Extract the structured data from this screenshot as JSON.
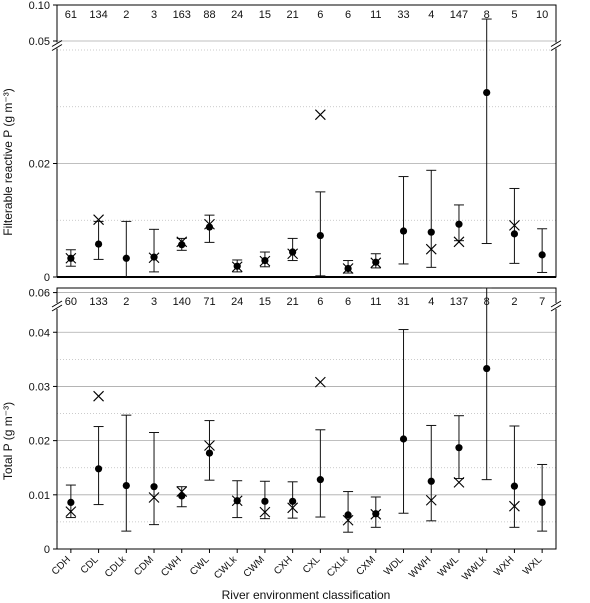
{
  "chart_data": {
    "xlabel": "River environment classification",
    "categories": [
      "CDH",
      "CDL",
      "CDLk",
      "CDM",
      "CWH",
      "CWL",
      "CWLk",
      "CWM",
      "CXH",
      "CXL",
      "CXLk",
      "CXM",
      "WDL",
      "WWH",
      "WWL",
      "WWLk",
      "WXH",
      "WXL"
    ],
    "panels": [
      {
        "type": "scatter",
        "ylabel": "Filterable reactive P (g m⁻³)",
        "ylim_lower": [
          0,
          0.04
        ],
        "ylim_upper": [
          0.05,
          0.1
        ],
        "yticks_lower": [
          "0",
          "0.02"
        ],
        "yticks_upper": [
          "0.05",
          "0.10"
        ],
        "grid": true,
        "counts": [
          "61",
          "134",
          "2",
          "3",
          "163",
          "88",
          "24",
          "15",
          "21",
          "6",
          "6",
          "11",
          "33",
          "4",
          "147",
          "8",
          "5",
          "10"
        ],
        "series": [
          {
            "marker": "dot",
            "values": [
              0.0033,
              0.0058,
              0.0033,
              0.0035,
              0.0057,
              0.0088,
              0.0019,
              0.0029,
              0.0044,
              0.0073,
              0.0015,
              0.0026,
              0.0081,
              0.0079,
              0.0093,
              0.0325,
              0.0076,
              0.0039
            ]
          },
          {
            "marker": "cross",
            "values": [
              0.0033,
              0.0101,
              null,
              0.0034,
              0.0062,
              0.0093,
              0.0018,
              0.0028,
              0.0041,
              0.0286,
              0.0015,
              0.0025,
              null,
              0.0049,
              0.0062,
              null,
              0.0091,
              null
            ]
          }
        ],
        "error_low": [
          0.0019,
          0.0031,
          0,
          0.0009,
          0.0047,
          0.0061,
          0.0009,
          0.0018,
          0.0029,
          0.0002,
          0.0007,
          0.0016,
          0.0023,
          0.0017,
          0.0064,
          0.0059,
          0.0024,
          0.0008
        ],
        "error_high": [
          0.0048,
          0.0098,
          0.0098,
          0.0084,
          0.0068,
          0.0109,
          0.003,
          0.0044,
          0.0068,
          0.015,
          0.0029,
          0.0041,
          0.0177,
          0.0188,
          0.0127,
          0.0805,
          0.0156,
          0.0085
        ]
      },
      {
        "type": "scatter",
        "ylabel": "Total P (g m⁻³)",
        "ylim_lower": [
          0,
          0.043
        ],
        "ylim_upper": [
          0.057,
          0.064
        ],
        "yticks_lower": [
          "0",
          "0.01",
          "0.02",
          "0.03",
          "0.04"
        ],
        "yticks_upper": [
          "0.06"
        ],
        "grid": true,
        "counts": [
          "60",
          "133",
          "2",
          "3",
          "140",
          "71",
          "24",
          "15",
          "21",
          "6",
          "6",
          "11",
          "31",
          "4",
          "137",
          "8",
          "2",
          "7"
        ],
        "series": [
          {
            "marker": "dot",
            "values": [
              0.0086,
              0.0148,
              0.0117,
              0.0115,
              0.0098,
              0.0177,
              0.0089,
              0.0088,
              0.0088,
              0.0128,
              0.0063,
              0.0065,
              0.0203,
              0.0125,
              0.0187,
              0.0333,
              0.0116,
              0.0086
            ]
          },
          {
            "marker": "cross",
            "values": [
              0.0069,
              0.0282,
              null,
              0.0095,
              0.0106,
              0.0191,
              0.0089,
              0.0068,
              0.0076,
              0.0308,
              0.0053,
              0.0064,
              null,
              0.009,
              0.0123,
              null,
              0.0079,
              null
            ]
          }
        ],
        "error_low": [
          0.0058,
          0.0082,
          0.0033,
          0.0045,
          0.0078,
          0.0127,
          0.0058,
          0.0056,
          0.0057,
          0.0059,
          0.0031,
          0.004,
          0.0066,
          0.0052,
          0.013,
          0.0128,
          0.004,
          0.0033
        ],
        "error_high": [
          0.0118,
          0.0226,
          0.0247,
          0.0215,
          0.0115,
          0.0237,
          0.0126,
          0.0125,
          0.0124,
          0.022,
          0.0106,
          0.0096,
          0.0405,
          0.0228,
          0.0246,
          0.064,
          0.0227,
          0.0156
        ]
      }
    ]
  }
}
